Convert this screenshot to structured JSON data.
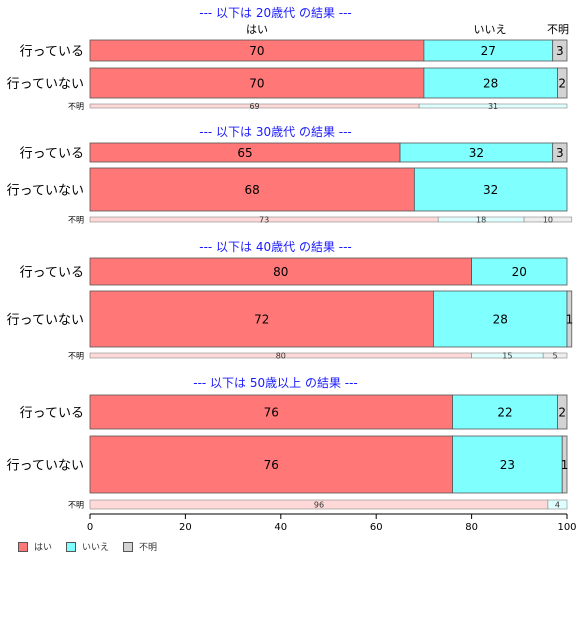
{
  "chart_data": {
    "type": "bar",
    "orientation": "horizontal",
    "stacked": true,
    "xlim": [
      0,
      100
    ],
    "xticks": [
      "0",
      "20",
      "40",
      "60",
      "80",
      "100"
    ],
    "colors": {
      "yes": "#ff7777",
      "no": "#80ffff",
      "unknown": "#d3d3d3"
    },
    "unknown_colors": {
      "yes": "#ffd8d8",
      "no": "#dfffff",
      "unknown": "#eeeeee"
    },
    "column_headers": [
      "はい",
      "いいえ",
      "不明"
    ],
    "legend": [
      "はい",
      "いいえ",
      "不明"
    ],
    "groups": [
      {
        "title": "--- 以下は 20歳代 の結果 ---",
        "rows": [
          {
            "label": "行っている",
            "values": [
              70,
              27,
              3
            ]
          },
          {
            "label": "行っていない",
            "values": [
              70,
              28,
              2
            ]
          }
        ],
        "unknown_row": {
          "label": "不明",
          "values": [
            69,
            31,
            0
          ]
        }
      },
      {
        "title": "--- 以下は 30歳代 の結果 ---",
        "rows": [
          {
            "label": "行っている",
            "values": [
              65,
              32,
              3
            ]
          },
          {
            "label": "行っていない",
            "values": [
              68,
              32,
              0
            ]
          }
        ],
        "unknown_row": {
          "label": "不明",
          "values": [
            73,
            18,
            10
          ]
        }
      },
      {
        "title": "--- 以下は 40歳代 の結果 ---",
        "rows": [
          {
            "label": "行っている",
            "values": [
              80,
              20,
              0
            ]
          },
          {
            "label": "行っていない",
            "values": [
              72,
              28,
              1
            ]
          }
        ],
        "unknown_row": {
          "label": "不明",
          "values": [
            80,
            15,
            5
          ]
        }
      },
      {
        "title": "--- 以下は 50歳以上 の結果 ---",
        "rows": [
          {
            "label": "行っている",
            "values": [
              76,
              22,
              2
            ]
          },
          {
            "label": "行っていない",
            "values": [
              76,
              23,
              1
            ]
          }
        ],
        "unknown_row": {
          "label": "不明",
          "values": [
            96,
            4,
            0
          ]
        }
      }
    ]
  }
}
